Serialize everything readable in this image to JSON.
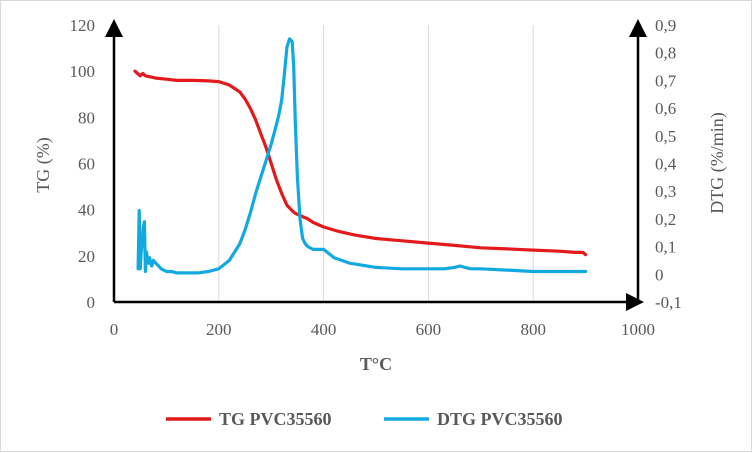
{
  "chart_data": {
    "type": "line",
    "xlabel": "T°C",
    "ylabel_left": "TG (%)",
    "ylabel_right": "DTG (%/min)",
    "xlim": [
      0,
      1000
    ],
    "ylim_left": [
      0,
      120
    ],
    "ylim_right": [
      -0.1,
      0.9
    ],
    "x_ticks": [
      "0",
      "200",
      "400",
      "600",
      "800",
      "1000"
    ],
    "y_left_ticks": [
      "0",
      "20",
      "40",
      "60",
      "80",
      "100",
      "120"
    ],
    "y_right_ticks": [
      "-0,1",
      "0",
      "0,1",
      "0,2",
      "0,3",
      "0,4",
      "0,5",
      "0,6",
      "0,7",
      "0,8",
      "0,9"
    ],
    "grid": "vertical",
    "legend_position": "bottom",
    "series": [
      {
        "name": "TG PVC35560",
        "axis": "left",
        "color": "#e31a1c",
        "x": [
          40,
          45,
          50,
          55,
          60,
          70,
          80,
          100,
          120,
          150,
          180,
          200,
          220,
          240,
          250,
          260,
          270,
          280,
          290,
          300,
          310,
          320,
          330,
          340,
          345,
          350,
          355,
          360,
          370,
          380,
          400,
          430,
          460,
          500,
          550,
          600,
          650,
          700,
          750,
          800,
          850,
          880,
          895,
          900
        ],
        "y": [
          100,
          99,
          98,
          99,
          98,
          97.5,
          97,
          96.5,
          96,
          96,
          95.8,
          95.5,
          94,
          91,
          88,
          84,
          79,
          73,
          67,
          60,
          53,
          47,
          42,
          39.5,
          38.5,
          38,
          37.5,
          37,
          36,
          34.5,
          32.5,
          30.5,
          29,
          27.5,
          26.5,
          25.5,
          24.5,
          23.5,
          23,
          22.5,
          22,
          21.5,
          21.5,
          20.5
        ]
      },
      {
        "name": "DTG PVC35560",
        "axis": "right",
        "color": "#12a9e0",
        "x": [
          46,
          48,
          50,
          52,
          54,
          56,
          58,
          60,
          62,
          64,
          66,
          68,
          70,
          72,
          75,
          80,
          90,
          100,
          110,
          120,
          140,
          160,
          180,
          200,
          220,
          240,
          250,
          260,
          270,
          280,
          290,
          300,
          310,
          315,
          320,
          325,
          330,
          335,
          340,
          343,
          346,
          350,
          355,
          360,
          365,
          370,
          380,
          400,
          420,
          450,
          500,
          550,
          600,
          630,
          650,
          660,
          680,
          700,
          750,
          800,
          850,
          880,
          900
        ],
        "y": [
          0.02,
          0.23,
          0.02,
          0.08,
          0.12,
          0.17,
          0.19,
          0.01,
          0.08,
          0.05,
          0.04,
          0.06,
          0.04,
          0.03,
          0.05,
          0.04,
          0.02,
          0.01,
          0.01,
          0.005,
          0.005,
          0.005,
          0.01,
          0.02,
          0.05,
          0.11,
          0.16,
          0.22,
          0.29,
          0.35,
          0.41,
          0.47,
          0.54,
          0.58,
          0.63,
          0.72,
          0.82,
          0.85,
          0.84,
          0.75,
          0.55,
          0.35,
          0.2,
          0.13,
          0.11,
          0.1,
          0.09,
          0.09,
          0.06,
          0.04,
          0.025,
          0.02,
          0.02,
          0.02,
          0.025,
          0.03,
          0.02,
          0.02,
          0.015,
          0.01,
          0.01,
          0.01,
          0.01
        ]
      }
    ]
  }
}
